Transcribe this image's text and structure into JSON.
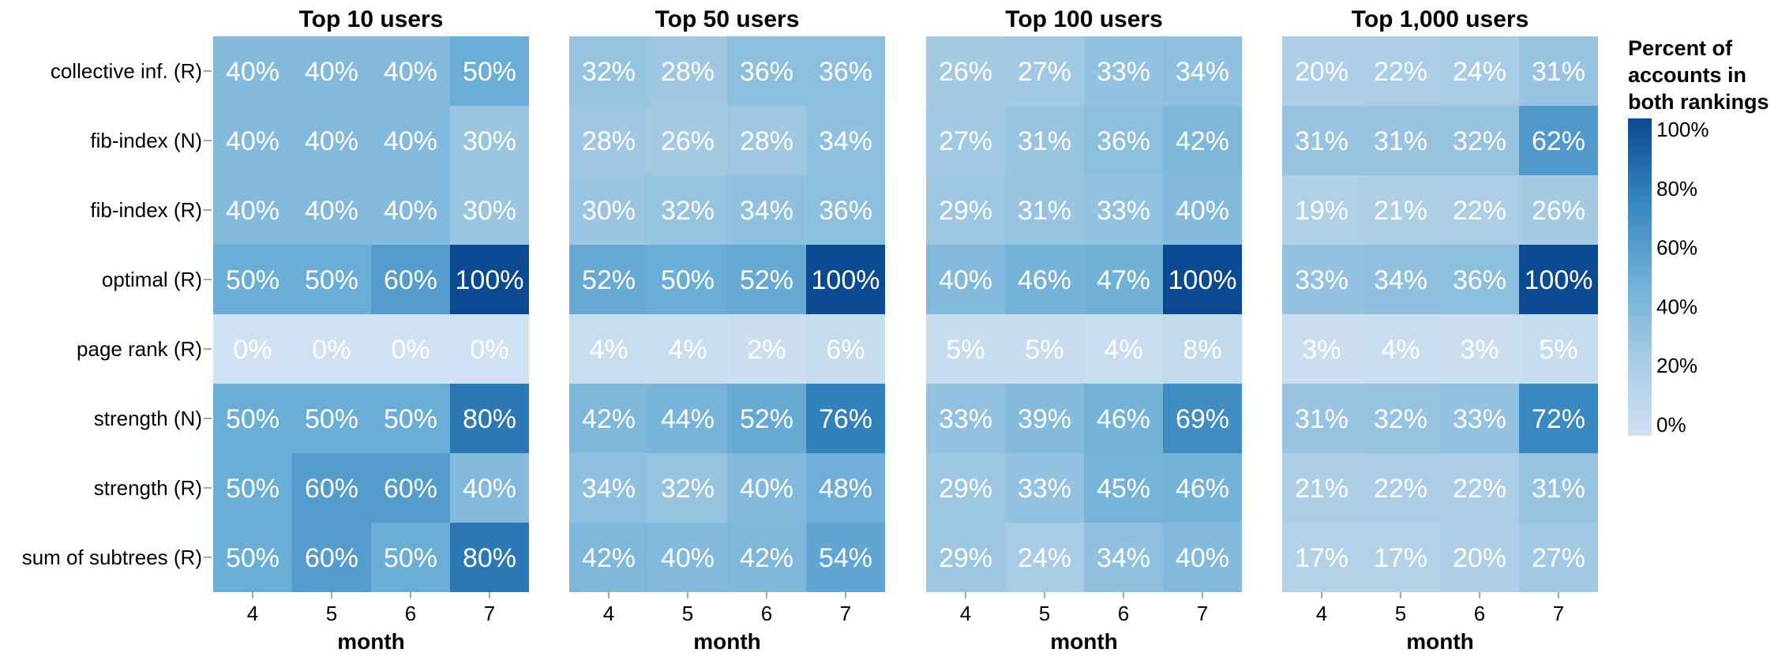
{
  "chart_data": {
    "type": "heatmap",
    "rows": [
      "collective inf. (R)",
      "fib-index (N)",
      "fib-index (R)",
      "optimal (R)",
      "page rank (R)",
      "strength (N)",
      "strength (R)",
      "sum of subtrees (R)"
    ],
    "columns": [
      "4",
      "5",
      "6",
      "7"
    ],
    "xlabel": "month",
    "value_unit": "%",
    "panels": [
      {
        "title": "Top 10 users",
        "values": [
          [
            40,
            40,
            40,
            50
          ],
          [
            40,
            40,
            40,
            30
          ],
          [
            40,
            40,
            40,
            30
          ],
          [
            50,
            50,
            60,
            100
          ],
          [
            0,
            0,
            0,
            0
          ],
          [
            50,
            50,
            50,
            80
          ],
          [
            50,
            60,
            60,
            40
          ],
          [
            50,
            60,
            50,
            80
          ]
        ]
      },
      {
        "title": "Top 50 users",
        "values": [
          [
            32,
            28,
            36,
            36
          ],
          [
            28,
            26,
            28,
            34
          ],
          [
            30,
            32,
            34,
            36
          ],
          [
            52,
            50,
            52,
            100
          ],
          [
            4,
            4,
            2,
            6
          ],
          [
            42,
            44,
            52,
            76
          ],
          [
            34,
            32,
            40,
            48
          ],
          [
            42,
            40,
            42,
            54
          ]
        ]
      },
      {
        "title": "Top 100 users",
        "values": [
          [
            26,
            27,
            33,
            34
          ],
          [
            27,
            31,
            36,
            42
          ],
          [
            29,
            31,
            33,
            40
          ],
          [
            40,
            46,
            47,
            100
          ],
          [
            5,
            5,
            4,
            8
          ],
          [
            33,
            39,
            46,
            69
          ],
          [
            29,
            33,
            45,
            46
          ],
          [
            29,
            24,
            34,
            40
          ]
        ]
      },
      {
        "title": "Top 1,000 users",
        "values": [
          [
            20,
            22,
            24,
            31
          ],
          [
            31,
            31,
            32,
            62
          ],
          [
            19,
            21,
            22,
            26
          ],
          [
            33,
            34,
            36,
            100
          ],
          [
            3,
            4,
            3,
            5
          ],
          [
            31,
            32,
            33,
            72
          ],
          [
            21,
            22,
            22,
            31
          ],
          [
            17,
            17,
            20,
            27
          ]
        ]
      }
    ],
    "legend": {
      "title_lines": [
        "Percent of",
        "accounts in",
        "both rankings"
      ],
      "ticks": [
        "100%",
        "80%",
        "60%",
        "40%",
        "20%",
        "0%"
      ],
      "range": [
        0,
        100
      ],
      "color_low": "#cfe1f2",
      "color_high": "#0b4a90"
    }
  }
}
